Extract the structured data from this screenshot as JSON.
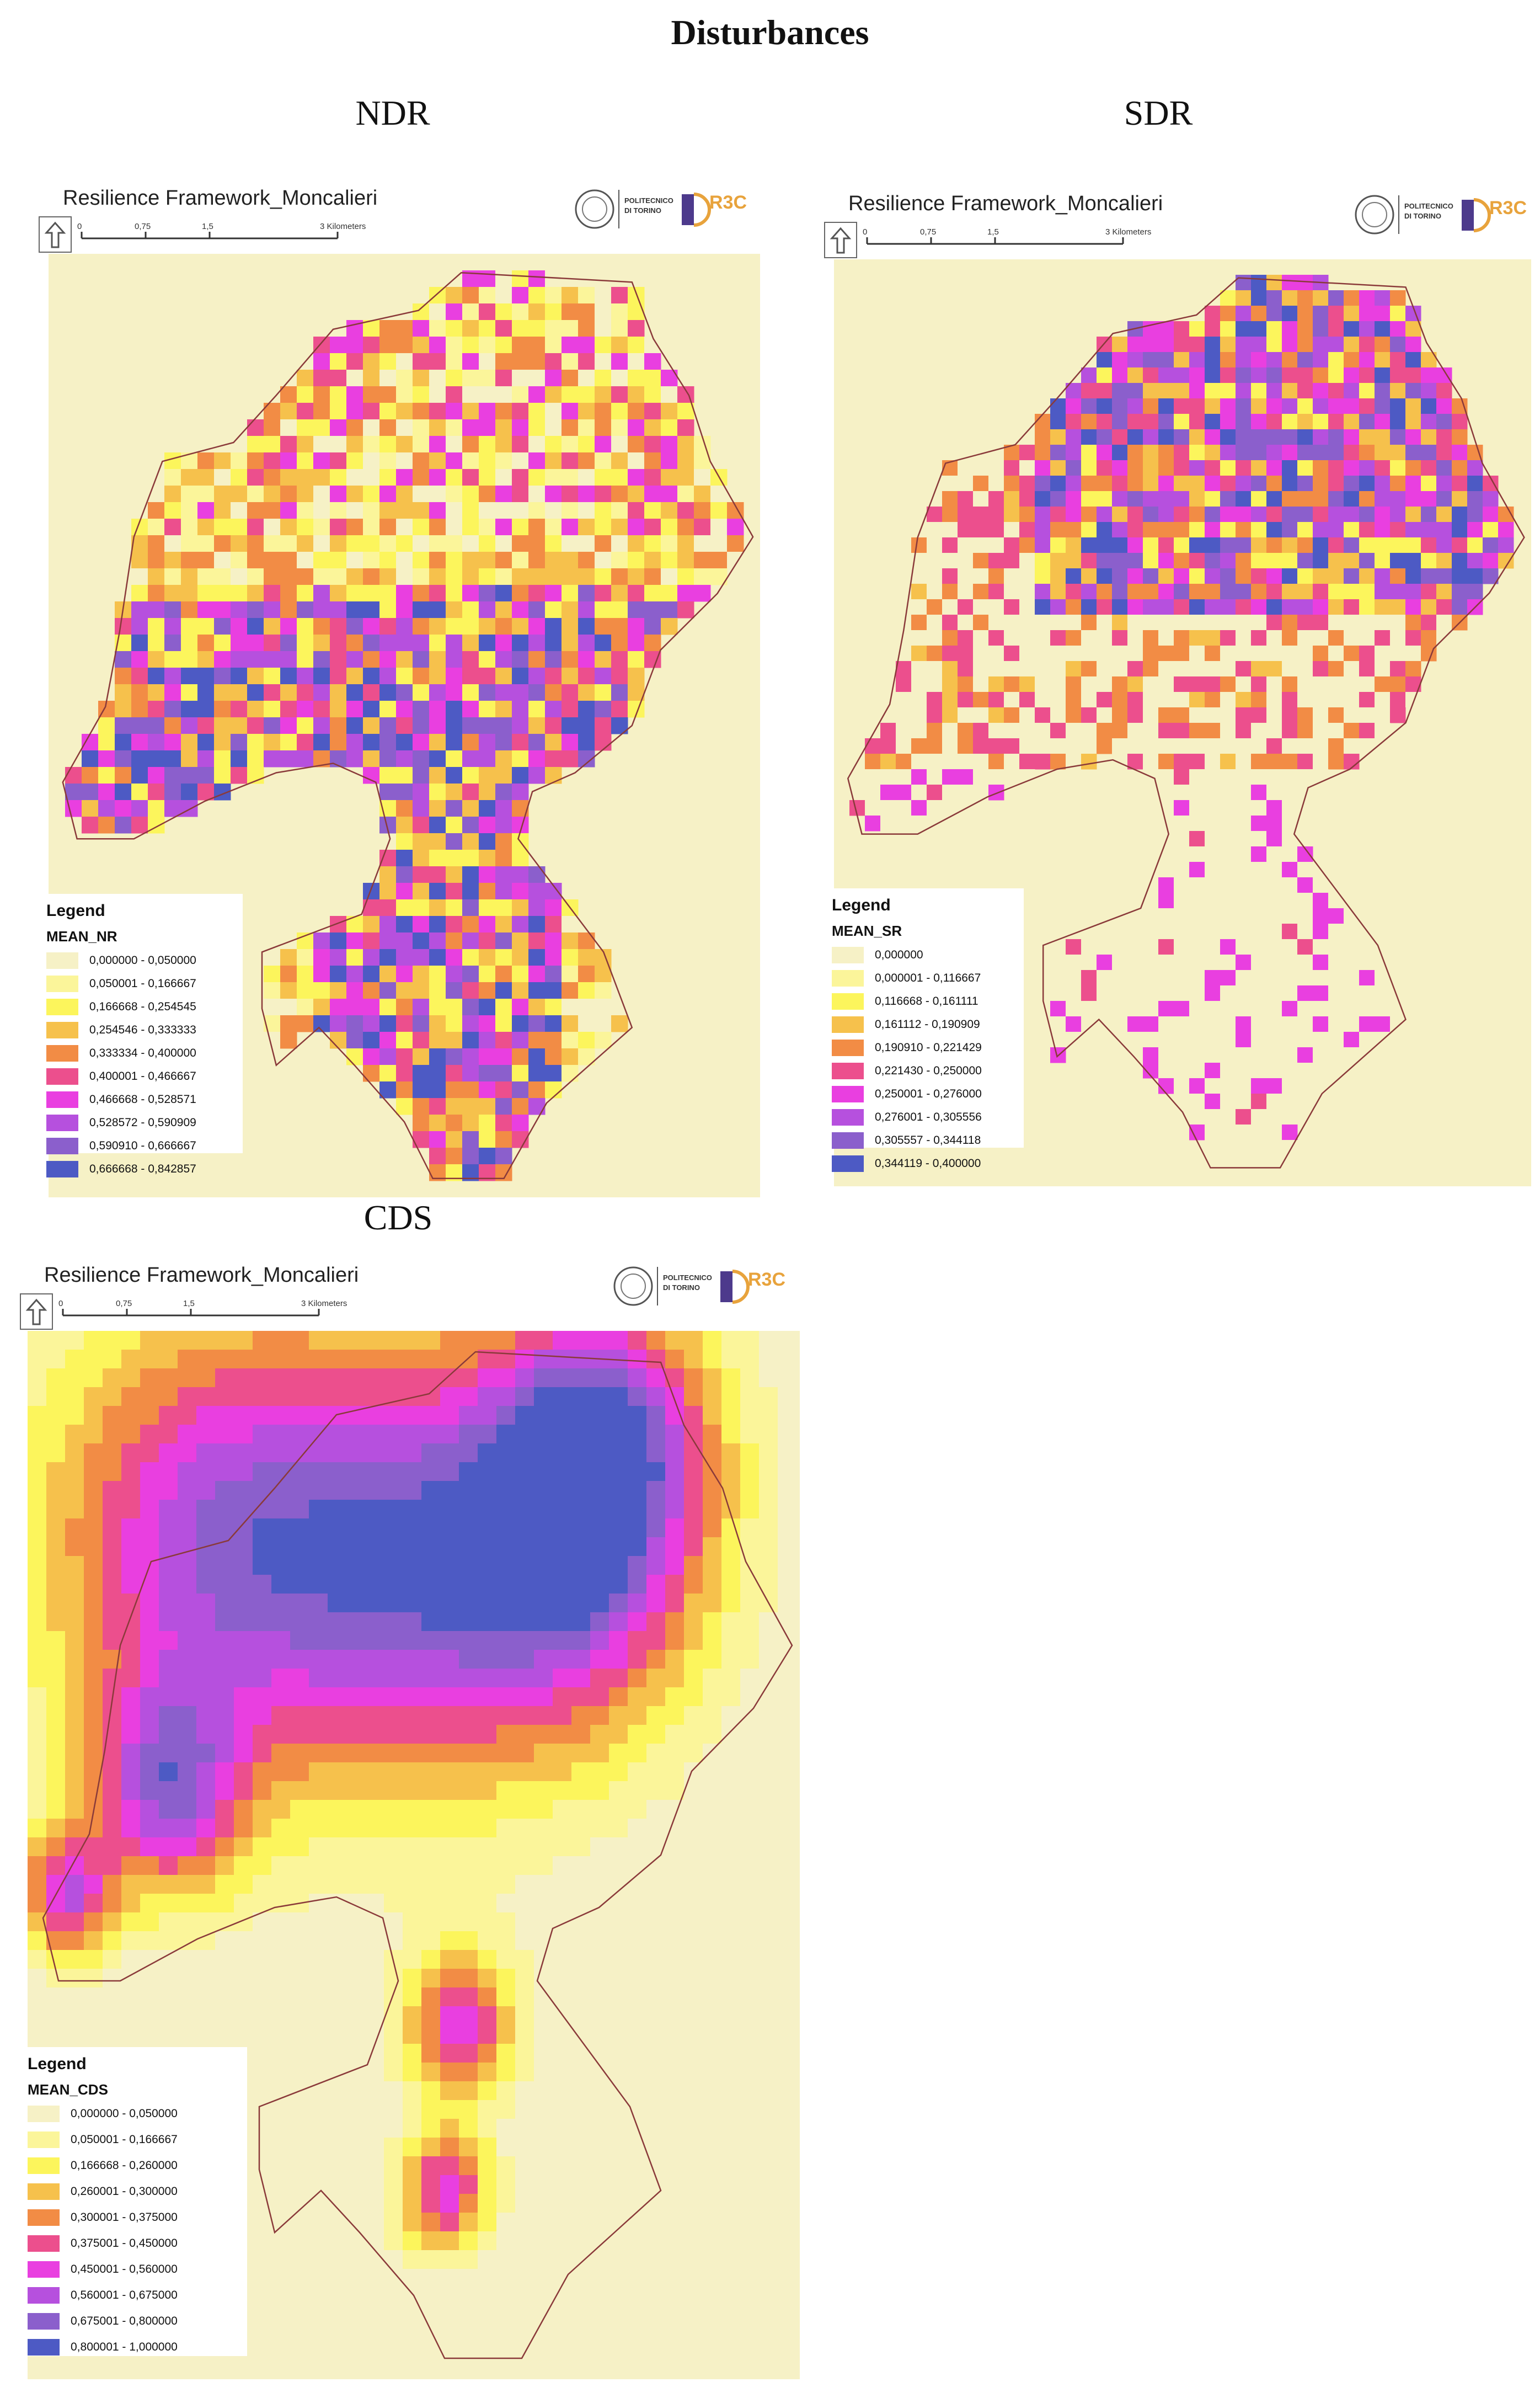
{
  "title": "Disturbances",
  "panels": [
    {
      "id": "ndr",
      "label": "NDR",
      "frame_title": "Resilience Framework_Moncalieri",
      "scale_ticks": [
        "0",
        "0,75",
        "1,5",
        "3 Kilometers"
      ],
      "logo_text": [
        "POLITECNICO",
        "DI TORINO",
        "R3C"
      ],
      "legend_title": "Legend",
      "legend_field": "MEAN_NR",
      "classes": [
        {
          "label": "0,000000 - 0,050000",
          "color": "#f6f1c6"
        },
        {
          "label": "0,050001 - 0,166667",
          "color": "#fbf59a"
        },
        {
          "label": "0,166668 - 0,254545",
          "color": "#fcf55c"
        },
        {
          "label": "0,254546 - 0,333333",
          "color": "#f6c14c"
        },
        {
          "label": "0,333334 - 0,400000",
          "color": "#f28c45"
        },
        {
          "label": "0,400001 - 0,466667",
          "color": "#ec4f8d"
        },
        {
          "label": "0,466668 - 0,528571",
          "color": "#e93fe0"
        },
        {
          "label": "0,528572 - 0,590909",
          "color": "#b650de"
        },
        {
          "label": "0,590910 - 0,666667",
          "color": "#8b5fcc"
        },
        {
          "label": "0,666668 - 0,842857",
          "color": "#4d5ac4"
        }
      ]
    },
    {
      "id": "sdr",
      "label": "SDR",
      "frame_title": "Resilience Framework_Moncalieri",
      "scale_ticks": [
        "0",
        "0,75",
        "1,5",
        "3 Kilometers"
      ],
      "logo_text": [
        "POLITECNICO",
        "DI TORINO",
        "R3C"
      ],
      "legend_title": "Legend",
      "legend_field": "MEAN_SR",
      "classes": [
        {
          "label": "0,000000",
          "color": "#f6f1c6"
        },
        {
          "label": "0,000001 - 0,116667",
          "color": "#fbf59a"
        },
        {
          "label": "0,116668 - 0,161111",
          "color": "#fcf55c"
        },
        {
          "label": "0,161112 - 0,190909",
          "color": "#f6c14c"
        },
        {
          "label": "0,190910 - 0,221429",
          "color": "#f28c45"
        },
        {
          "label": "0,221430 - 0,250000",
          "color": "#ec4f8d"
        },
        {
          "label": "0,250001 - 0,276000",
          "color": "#e93fe0"
        },
        {
          "label": "0,276001 - 0,305556",
          "color": "#b650de"
        },
        {
          "label": "0,305557 - 0,344118",
          "color": "#8b5fcc"
        },
        {
          "label": "0,344119 - 0,400000",
          "color": "#4d5ac4"
        }
      ]
    },
    {
      "id": "cds",
      "label": "CDS",
      "frame_title": "Resilience Framework_Moncalieri",
      "scale_ticks": [
        "0",
        "0,75",
        "1,5",
        "3 Kilometers"
      ],
      "logo_text": [
        "POLITECNICO",
        "DI TORINO",
        "R3C"
      ],
      "legend_title": "Legend",
      "legend_field": "MEAN_CDS",
      "classes": [
        {
          "label": "0,000000 - 0,050000",
          "color": "#f6f1c6"
        },
        {
          "label": "0,050001 - 0,166667",
          "color": "#fbf59a"
        },
        {
          "label": "0,166668 - 0,260000",
          "color": "#fcf55c"
        },
        {
          "label": "0,260001 - 0,300000",
          "color": "#f6c14c"
        },
        {
          "label": "0,300001 - 0,375000",
          "color": "#f28c45"
        },
        {
          "label": "0,375001 - 0,450000",
          "color": "#ec4f8d"
        },
        {
          "label": "0,450001 - 0,560000",
          "color": "#e93fe0"
        },
        {
          "label": "0,560001 - 0,675000",
          "color": "#b650de"
        },
        {
          "label": "0,675001 - 0,800000",
          "color": "#8b5fcc"
        },
        {
          "label": "0,800001 - 1,000000",
          "color": "#4d5ac4"
        }
      ]
    }
  ],
  "colors": {
    "boundary": "#8a3a3a",
    "background_fill": "#f6f1c6"
  }
}
